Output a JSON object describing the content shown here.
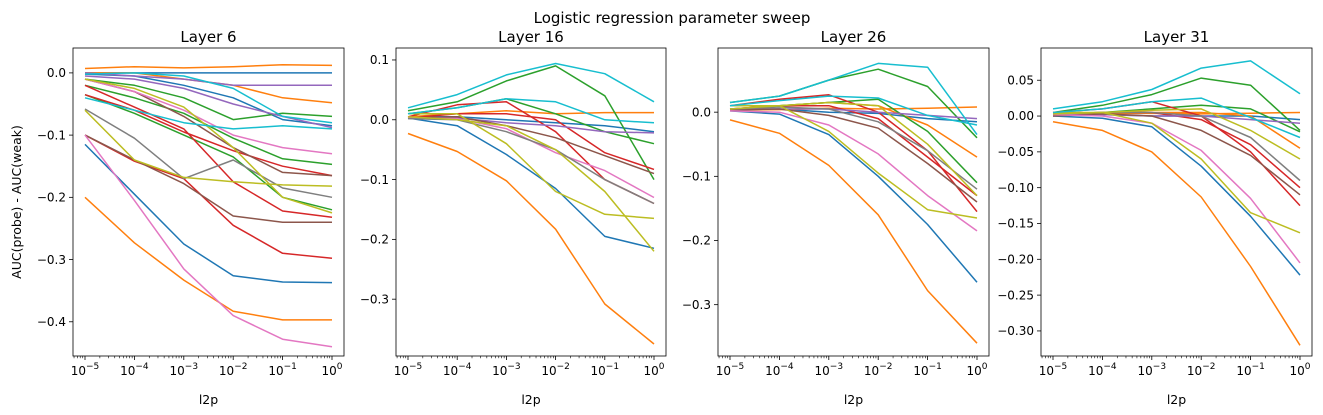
{
  "figure": {
    "title": "Logistic regression parameter sweep"
  },
  "chart_data": [
    {
      "type": "line",
      "title": "Layer 6",
      "xlabel": "l2p",
      "ylabel": "AUC(probe) - AUC(weak)",
      "x_scale": "log",
      "x": [
        1e-05,
        0.0001,
        0.001,
        0.01,
        0.1,
        1
      ],
      "x_ticks": [
        {
          "value": 1e-05,
          "exp": "−5"
        },
        {
          "value": 0.0001,
          "exp": "−4"
        },
        {
          "value": 0.001,
          "exp": "−3"
        },
        {
          "value": 0.01,
          "exp": "−2"
        },
        {
          "value": 0.1,
          "exp": "−1"
        },
        {
          "value": 1,
          "exp": "0"
        }
      ],
      "ylim": [
        -0.455,
        0.04
      ],
      "y_ticks": [
        {
          "value": 0.0,
          "label": "0.0"
        },
        {
          "value": -0.1,
          "label": "−0.1"
        },
        {
          "value": -0.2,
          "label": "−0.2"
        },
        {
          "value": -0.3,
          "label": "−0.3"
        },
        {
          "value": -0.4,
          "label": "−0.4"
        }
      ],
      "series": [
        {
          "color": "#1f77b4",
          "values": [
            -0.115,
            -0.195,
            -0.275,
            -0.326,
            -0.336,
            -0.337
          ]
        },
        {
          "color": "#1f77b4",
          "values": [
            -0.002,
            -0.005,
            -0.02,
            -0.04,
            -0.075,
            -0.085
          ]
        },
        {
          "color": "#1f77b4",
          "values": [
            0.0,
            0.0,
            0.0,
            0.0,
            0.0,
            0.0
          ]
        },
        {
          "color": "#ff7f0e",
          "values": [
            -0.2,
            -0.273,
            -0.333,
            -0.383,
            -0.397,
            -0.397
          ]
        },
        {
          "color": "#ff7f0e",
          "values": [
            0.007,
            0.01,
            0.008,
            0.01,
            0.013,
            0.012
          ]
        },
        {
          "color": "#ff7f0e",
          "values": [
            0.0,
            0.0,
            -0.01,
            -0.02,
            -0.04,
            -0.048
          ]
        },
        {
          "color": "#2ca02c",
          "values": [
            -0.02,
            -0.04,
            -0.065,
            -0.105,
            -0.138,
            -0.147
          ]
        },
        {
          "color": "#2ca02c",
          "values": [
            -0.035,
            -0.065,
            -0.1,
            -0.135,
            -0.2,
            -0.22
          ]
        },
        {
          "color": "#2ca02c",
          "values": [
            -0.01,
            -0.02,
            -0.04,
            -0.075,
            -0.065,
            -0.07
          ]
        },
        {
          "color": "#d62728",
          "values": [
            -0.02,
            -0.055,
            -0.09,
            -0.175,
            -0.222,
            -0.232
          ]
        },
        {
          "color": "#d62728",
          "values": [
            -0.1,
            -0.142,
            -0.17,
            -0.245,
            -0.29,
            -0.298
          ]
        },
        {
          "color": "#d62728",
          "values": [
            -0.035,
            -0.06,
            -0.095,
            -0.125,
            -0.15,
            -0.165
          ]
        },
        {
          "color": "#9467bd",
          "values": [
            -0.005,
            -0.01,
            -0.025,
            -0.05,
            -0.07,
            -0.088
          ]
        },
        {
          "color": "#9467bd",
          "values": [
            0.0,
            -0.005,
            -0.01,
            -0.02,
            -0.02,
            -0.02
          ]
        },
        {
          "color": "#8c564b",
          "values": [
            -0.1,
            -0.14,
            -0.178,
            -0.23,
            -0.24,
            -0.24
          ]
        },
        {
          "color": "#8c564b",
          "values": [
            -0.01,
            -0.03,
            -0.07,
            -0.12,
            -0.16,
            -0.165
          ]
        },
        {
          "color": "#e377c2",
          "values": [
            -0.1,
            -0.205,
            -0.315,
            -0.39,
            -0.428,
            -0.44
          ]
        },
        {
          "color": "#e377c2",
          "values": [
            -0.01,
            -0.03,
            -0.06,
            -0.1,
            -0.12,
            -0.13
          ]
        },
        {
          "color": "#7f7f7f",
          "values": [
            -0.058,
            -0.105,
            -0.17,
            -0.14,
            -0.185,
            -0.2
          ]
        },
        {
          "color": "#bcbd22",
          "values": [
            -0.06,
            -0.14,
            -0.168,
            -0.175,
            -0.18,
            -0.182
          ]
        },
        {
          "color": "#bcbd22",
          "values": [
            -0.01,
            -0.025,
            -0.055,
            -0.12,
            -0.2,
            -0.225
          ]
        },
        {
          "color": "#17becf",
          "values": [
            -0.04,
            -0.06,
            -0.08,
            -0.09,
            -0.085,
            -0.09
          ]
        },
        {
          "color": "#17becf",
          "values": [
            -0.002,
            0.0,
            -0.005,
            -0.025,
            -0.07,
            -0.08
          ]
        }
      ]
    },
    {
      "type": "line",
      "title": "Layer 16",
      "xlabel": "l2p",
      "ylabel": "",
      "x_scale": "log",
      "x": [
        1e-05,
        0.0001,
        0.001,
        0.01,
        0.1,
        1
      ],
      "x_ticks": [
        {
          "value": 1e-05,
          "exp": "−5"
        },
        {
          "value": 0.0001,
          "exp": "−4"
        },
        {
          "value": 0.001,
          "exp": "−3"
        },
        {
          "value": 0.01,
          "exp": "−2"
        },
        {
          "value": 0.1,
          "exp": "−1"
        },
        {
          "value": 1,
          "exp": "0"
        }
      ],
      "ylim": [
        -0.395,
        0.12
      ],
      "y_ticks": [
        {
          "value": 0.1,
          "label": "0.1"
        },
        {
          "value": 0.0,
          "label": "0.0"
        },
        {
          "value": -0.1,
          "label": "−0.1"
        },
        {
          "value": -0.2,
          "label": "−0.2"
        },
        {
          "value": -0.3,
          "label": "−0.3"
        }
      ],
      "series": [
        {
          "color": "#1f77b4",
          "values": [
            0.003,
            -0.01,
            -0.058,
            -0.115,
            -0.195,
            -0.215
          ]
        },
        {
          "color": "#1f77b4",
          "values": [
            0.005,
            0.005,
            0.0,
            -0.005,
            -0.01,
            -0.02
          ]
        },
        {
          "color": "#ff7f0e",
          "values": [
            -0.023,
            -0.053,
            -0.102,
            -0.183,
            -0.308,
            -0.375
          ]
        },
        {
          "color": "#ff7f0e",
          "values": [
            0.005,
            0.01,
            0.015,
            0.01,
            0.012,
            0.012
          ]
        },
        {
          "color": "#2ca02c",
          "values": [
            0.015,
            0.03,
            0.065,
            0.09,
            0.04,
            -0.1
          ]
        },
        {
          "color": "#2ca02c",
          "values": [
            0.01,
            0.02,
            0.035,
            0.01,
            -0.02,
            -0.04
          ]
        },
        {
          "color": "#d62728",
          "values": [
            0.005,
            0.025,
            0.03,
            -0.02,
            -0.1,
            -0.14
          ]
        },
        {
          "color": "#d62728",
          "values": [
            0.003,
            0.01,
            0.01,
            0.0,
            -0.055,
            -0.083
          ]
        },
        {
          "color": "#9467bd",
          "values": [
            0.003,
            0.003,
            -0.005,
            -0.01,
            -0.02,
            -0.022
          ]
        },
        {
          "color": "#8c564b",
          "values": [
            0.003,
            0.005,
            -0.01,
            -0.03,
            -0.06,
            -0.09
          ]
        },
        {
          "color": "#e377c2",
          "values": [
            0.003,
            0.002,
            -0.015,
            -0.055,
            -0.085,
            -0.13
          ]
        },
        {
          "color": "#7f7f7f",
          "values": [
            0.002,
            0.0,
            -0.02,
            -0.05,
            -0.1,
            -0.14
          ]
        },
        {
          "color": "#bcbd22",
          "values": [
            0.01,
            0.01,
            -0.04,
            -0.12,
            -0.158,
            -0.165
          ]
        },
        {
          "color": "#bcbd22",
          "values": [
            0.005,
            0.0,
            -0.01,
            -0.05,
            -0.12,
            -0.22
          ]
        },
        {
          "color": "#17becf",
          "values": [
            0.02,
            0.042,
            0.075,
            0.094,
            0.077,
            0.03
          ]
        },
        {
          "color": "#17becf",
          "values": [
            0.01,
            0.02,
            0.035,
            0.03,
            0.0,
            -0.005
          ]
        }
      ]
    },
    {
      "type": "line",
      "title": "Layer 26",
      "xlabel": "l2p",
      "ylabel": "",
      "x_scale": "log",
      "x": [
        1e-05,
        0.0001,
        0.001,
        0.01,
        0.1,
        1
      ],
      "x_ticks": [
        {
          "value": 1e-05,
          "exp": "−5"
        },
        {
          "value": 0.0001,
          "exp": "−4"
        },
        {
          "value": 0.001,
          "exp": "−3"
        },
        {
          "value": 0.01,
          "exp": "−2"
        },
        {
          "value": 0.1,
          "exp": "−1"
        },
        {
          "value": 1,
          "exp": "0"
        }
      ],
      "ylim": [
        -0.38,
        0.1
      ],
      "y_ticks": [
        {
          "value": 0.0,
          "label": "0.0"
        },
        {
          "value": -0.1,
          "label": "−0.1"
        },
        {
          "value": -0.2,
          "label": "−0.2"
        },
        {
          "value": -0.3,
          "label": "−0.3"
        }
      ],
      "series": [
        {
          "color": "#1f77b4",
          "values": [
            0.002,
            -0.003,
            -0.035,
            -0.1,
            -0.175,
            -0.265
          ]
        },
        {
          "color": "#1f77b4",
          "values": [
            0.005,
            0.005,
            0.0,
            -0.002,
            -0.01,
            -0.015
          ]
        },
        {
          "color": "#ff7f0e",
          "values": [
            -0.012,
            -0.033,
            -0.083,
            -0.16,
            -0.278,
            -0.36
          ]
        },
        {
          "color": "#ff7f0e",
          "values": [
            0.005,
            0.01,
            0.015,
            0.01,
            -0.02,
            -0.07
          ]
        },
        {
          "color": "#ff7f0e",
          "values": [
            0.003,
            0.004,
            0.006,
            0.005,
            0.006,
            0.008
          ]
        },
        {
          "color": "#2ca02c",
          "values": [
            0.015,
            0.025,
            0.05,
            0.067,
            0.04,
            -0.04
          ]
        },
        {
          "color": "#2ca02c",
          "values": [
            0.01,
            0.01,
            0.015,
            0.02,
            -0.03,
            -0.11
          ]
        },
        {
          "color": "#d62728",
          "values": [
            0.01,
            0.02,
            0.027,
            0.0,
            -0.06,
            -0.155
          ]
        },
        {
          "color": "#d62728",
          "values": [
            0.005,
            0.01,
            0.01,
            -0.01,
            -0.07,
            -0.13
          ]
        },
        {
          "color": "#9467bd",
          "values": [
            0.005,
            0.005,
            0.005,
            0.0,
            -0.005,
            -0.01
          ]
        },
        {
          "color": "#8c564b",
          "values": [
            0.003,
            0.005,
            -0.005,
            -0.025,
            -0.08,
            -0.14
          ]
        },
        {
          "color": "#e377c2",
          "values": [
            0.002,
            0.0,
            -0.02,
            -0.065,
            -0.13,
            -0.185
          ]
        },
        {
          "color": "#7f7f7f",
          "values": [
            0.005,
            0.008,
            0.005,
            -0.015,
            -0.06,
            -0.12
          ]
        },
        {
          "color": "#bcbd22",
          "values": [
            0.01,
            0.01,
            -0.03,
            -0.095,
            -0.152,
            -0.165
          ]
        },
        {
          "color": "#bcbd22",
          "values": [
            0.005,
            0.01,
            0.015,
            0.01,
            -0.05,
            -0.13
          ]
        },
        {
          "color": "#17becf",
          "values": [
            0.015,
            0.025,
            0.05,
            0.076,
            0.07,
            -0.035
          ]
        },
        {
          "color": "#17becf",
          "values": [
            0.01,
            0.018,
            0.025,
            0.022,
            -0.005,
            -0.02
          ]
        }
      ]
    },
    {
      "type": "line",
      "title": "Layer 31",
      "xlabel": "l2p",
      "ylabel": "",
      "x_scale": "log",
      "x": [
        1e-05,
        0.0001,
        0.001,
        0.01,
        0.1,
        1
      ],
      "x_ticks": [
        {
          "value": 1e-05,
          "exp": "−5"
        },
        {
          "value": 0.0001,
          "exp": "−4"
        },
        {
          "value": 0.001,
          "exp": "−3"
        },
        {
          "value": 0.01,
          "exp": "−2"
        },
        {
          "value": 0.1,
          "exp": "−1"
        },
        {
          "value": 1,
          "exp": "0"
        }
      ],
      "ylim": [
        -0.335,
        0.095
      ],
      "y_ticks": [
        {
          "value": 0.05,
          "label": "0.05"
        },
        {
          "value": 0.0,
          "label": "0.00"
        },
        {
          "value": -0.05,
          "label": "−0.05"
        },
        {
          "value": -0.1,
          "label": "−0.10"
        },
        {
          "value": -0.15,
          "label": "−0.15"
        },
        {
          "value": -0.2,
          "label": "−0.20"
        },
        {
          "value": -0.25,
          "label": "−0.25"
        },
        {
          "value": -0.3,
          "label": "−0.30"
        }
      ],
      "series": [
        {
          "color": "#1f77b4",
          "values": [
            0.0,
            -0.003,
            -0.015,
            -0.07,
            -0.14,
            -0.222
          ]
        },
        {
          "color": "#1f77b4",
          "values": [
            0.002,
            0.002,
            0.0,
            0.0,
            0.0,
            -0.005
          ]
        },
        {
          "color": "#ff7f0e",
          "values": [
            -0.008,
            -0.02,
            -0.05,
            -0.113,
            -0.21,
            -0.32
          ]
        },
        {
          "color": "#ff7f0e",
          "values": [
            0.003,
            0.005,
            0.005,
            0.005,
            0.0,
            -0.045
          ]
        },
        {
          "color": "#ff7f0e",
          "values": [
            0.002,
            0.003,
            0.004,
            0.003,
            0.004,
            0.005
          ]
        },
        {
          "color": "#2ca02c",
          "values": [
            0.005,
            0.015,
            0.03,
            0.053,
            0.043,
            -0.02
          ]
        },
        {
          "color": "#2ca02c",
          "values": [
            0.003,
            0.005,
            0.01,
            0.015,
            0.01,
            -0.022
          ]
        },
        {
          "color": "#d62728",
          "values": [
            0.005,
            0.01,
            0.02,
            0.0,
            -0.05,
            -0.125
          ]
        },
        {
          "color": "#d62728",
          "values": [
            0.003,
            0.005,
            0.005,
            -0.005,
            -0.04,
            -0.1
          ]
        },
        {
          "color": "#9467bd",
          "values": [
            0.002,
            0.002,
            0.0,
            0.0,
            -0.005,
            -0.01
          ]
        },
        {
          "color": "#8c564b",
          "values": [
            0.0,
            0.003,
            0.0,
            -0.02,
            -0.055,
            -0.11
          ]
        },
        {
          "color": "#e377c2",
          "values": [
            0.002,
            0.0,
            -0.01,
            -0.048,
            -0.115,
            -0.205
          ]
        },
        {
          "color": "#7f7f7f",
          "values": [
            0.003,
            0.005,
            0.005,
            0.0,
            -0.03,
            -0.09
          ]
        },
        {
          "color": "#bcbd22",
          "values": [
            0.005,
            0.005,
            -0.01,
            -0.06,
            -0.135,
            -0.163
          ]
        },
        {
          "color": "#bcbd22",
          "values": [
            0.003,
            0.005,
            0.008,
            0.01,
            -0.02,
            -0.06
          ]
        },
        {
          "color": "#17becf",
          "values": [
            0.01,
            0.02,
            0.037,
            0.067,
            0.077,
            0.031
          ]
        },
        {
          "color": "#17becf",
          "values": [
            0.005,
            0.01,
            0.02,
            0.025,
            -0.002,
            -0.03
          ]
        }
      ]
    }
  ]
}
